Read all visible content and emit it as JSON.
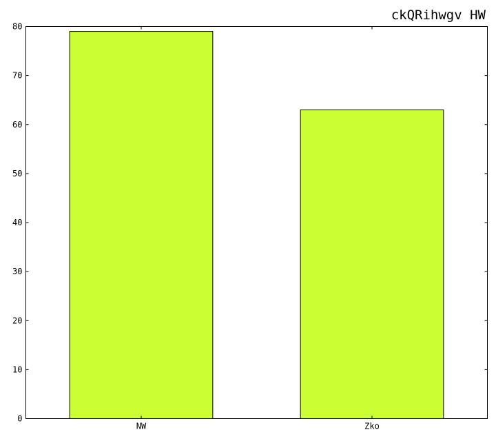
{
  "chart_data": {
    "type": "bar",
    "title": "ckQRihwgv  HW",
    "xlabel": "",
    "ylabel": "",
    "categories": [
      "NW",
      "Zko"
    ],
    "values": [
      79,
      63
    ],
    "ylim": [
      0,
      80
    ],
    "yticks": [
      0,
      10,
      20,
      30,
      40,
      50,
      60,
      70,
      80
    ],
    "bar_color": "#ccff33",
    "grid": false,
    "legend": "none"
  }
}
